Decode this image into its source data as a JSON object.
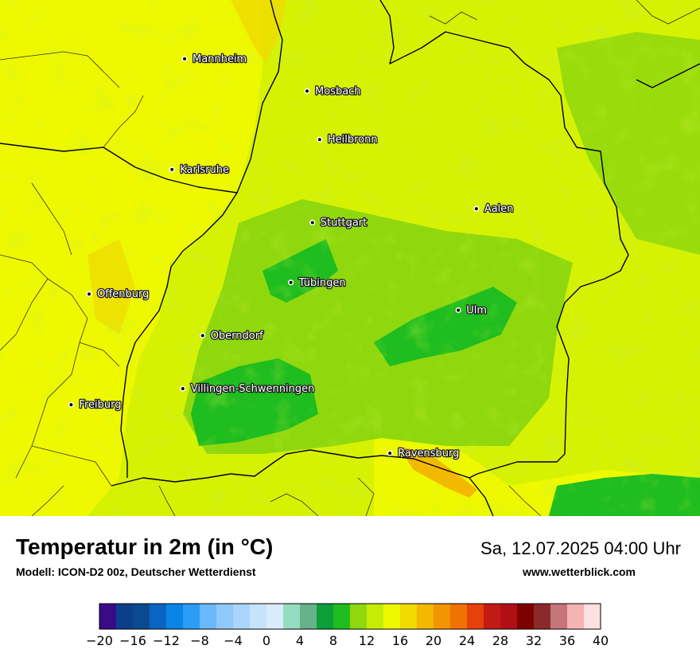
{
  "title": "Temperatur in 2m (in °C)",
  "subtitle": "Modell: ICON-D2 00z, Deutscher Wetterdienst",
  "datetime": "Sa, 12.07.2025 04:00 Uhr",
  "website": "www.wetterblick.com",
  "cities": [
    {
      "name": "Mannheim",
      "lon": 8.47,
      "lat": 49.49
    },
    {
      "name": "Mosbach",
      "lon": 9.15,
      "lat": 49.35
    },
    {
      "name": "Heilbronn",
      "lon": 9.22,
      "lat": 49.14
    },
    {
      "name": "Karlsruhe",
      "lon": 8.4,
      "lat": 49.01
    },
    {
      "name": "Aalen",
      "lon": 10.09,
      "lat": 48.84
    },
    {
      "name": "Stuttgart",
      "lon": 9.18,
      "lat": 48.78
    },
    {
      "name": "Tübingen",
      "lon": 9.06,
      "lat": 48.52
    },
    {
      "name": "Offenburg",
      "lon": 7.94,
      "lat": 48.47
    },
    {
      "name": "Ulm",
      "lon": 9.99,
      "lat": 48.4
    },
    {
      "name": "Oberndorf",
      "lon": 8.57,
      "lat": 48.29
    },
    {
      "name": "Villingen-Schwenningen",
      "lon": 8.46,
      "lat": 48.06
    },
    {
      "name": "Freiburg",
      "lon": 7.84,
      "lat": 47.99
    },
    {
      "name": "Ravensburg",
      "lon": 9.61,
      "lat": 47.78
    }
  ],
  "legend": {
    "ticks": [
      "−20",
      "−16",
      "−12",
      "−8",
      "−4",
      "0",
      "4",
      "8",
      "12",
      "16",
      "20",
      "24",
      "28",
      "32",
      "36",
      "40"
    ],
    "min": -20,
    "max": 40,
    "step": 2,
    "colors": [
      "#3a0b87",
      "#0b3f8a",
      "#0b4a8f",
      "#0a65c2",
      "#0a85e6",
      "#2a9cf5",
      "#6ab8fb",
      "#8fc8fb",
      "#a9d5fb",
      "#c7e3fb",
      "#daecfc",
      "#94dcc0",
      "#66b28a",
      "#0e9e3a",
      "#1fbd1f",
      "#8fd80d",
      "#c6ec06",
      "#eef900",
      "#f0da00",
      "#f2b900",
      "#f29500",
      "#f07200",
      "#e8400a",
      "#c21b15",
      "#b01015",
      "#7e0000",
      "#8a2a2a",
      "#c47678",
      "#f4b4b4",
      "#fde0e0"
    ]
  }
}
